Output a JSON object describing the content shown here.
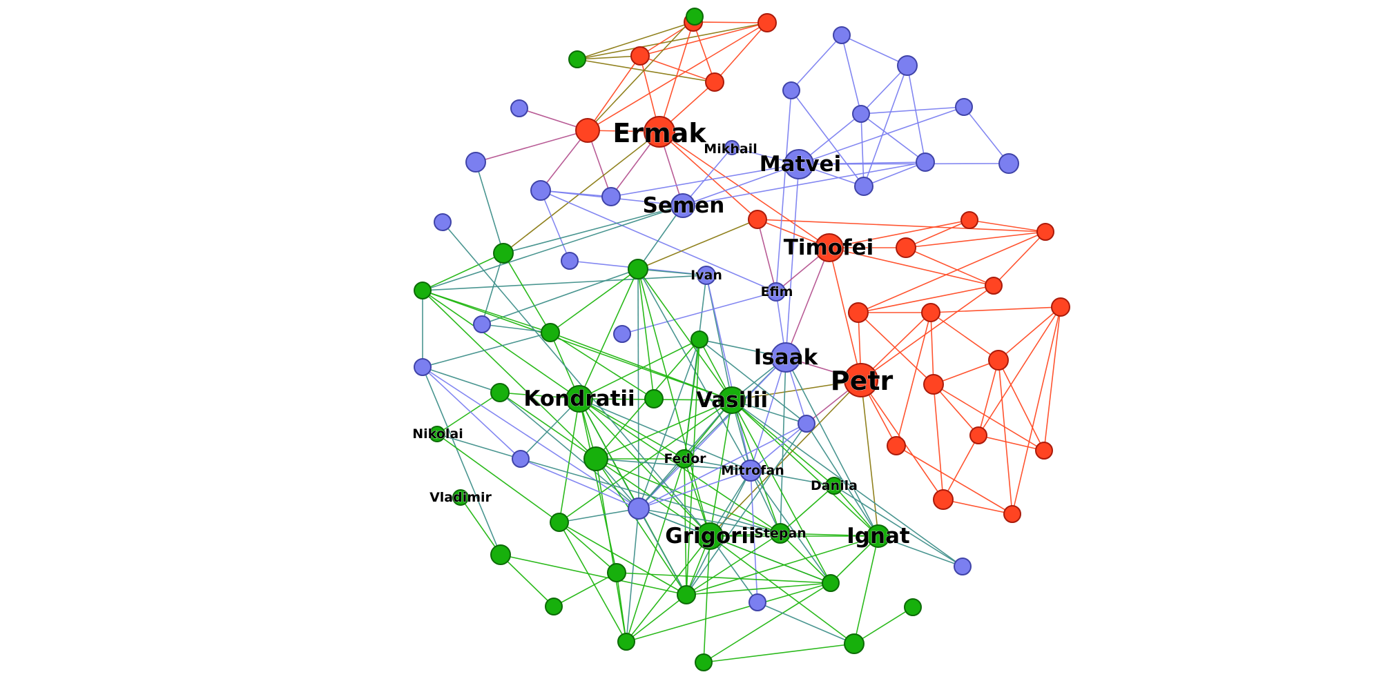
{
  "colors": {
    "red_group": "#ff4422",
    "red_stroke": "#aa1a0a",
    "blue_group": "#7b7ff0",
    "blue_stroke": "#3f43a8",
    "green_group": "#17b00c",
    "green_stroke": "#0b6a06",
    "edge_red": "#ff4a24",
    "edge_blue": "#7b7ff0",
    "edge_green": "#1fb50f",
    "edge_red_blue": "#b4528f",
    "edge_red_green": "#8a7a12",
    "edge_blue_green": "#3f8f8a"
  },
  "labels": {
    "ermak": "Ermak",
    "mikhail": "Mikhail",
    "matvei": "Matvei",
    "semen": "Semen",
    "timofei": "Timofei",
    "ivan": "Ivan",
    "efim": "Efim",
    "isaak": "Isaak",
    "petr": "Petr",
    "kondratii": "Kondratii",
    "vasilii": "Vasilii",
    "nikolai": "Nikolai",
    "fedor": "Fedor",
    "mitrofan": "Mitrofan",
    "danila": "Danila",
    "vladimir": "Vladimir",
    "grigorii": "Grigorii",
    "stepan": "Stepan",
    "ignat": "Ignat"
  },
  "chart_data": {
    "type": "network",
    "groups": [
      "red",
      "blue",
      "green"
    ],
    "nodes": [
      {
        "id": "ermak",
        "name": "Ermak",
        "group": "red"
      },
      {
        "id": "mikhail",
        "name": "Mikhail",
        "group": "blue"
      },
      {
        "id": "matvei",
        "name": "Matvei",
        "group": "blue"
      },
      {
        "id": "semen",
        "name": "Semen",
        "group": "blue"
      },
      {
        "id": "timofei",
        "name": "Timofei",
        "group": "red"
      },
      {
        "id": "ivan",
        "name": "Ivan",
        "group": "blue"
      },
      {
        "id": "efim",
        "name": "Efim",
        "group": "blue"
      },
      {
        "id": "isaak",
        "name": "Isaak",
        "group": "blue"
      },
      {
        "id": "petr",
        "name": "Petr",
        "group": "red"
      },
      {
        "id": "kondratii",
        "name": "Kondratii",
        "group": "green"
      },
      {
        "id": "vasilii",
        "name": "Vasilii",
        "group": "green"
      },
      {
        "id": "nikolai",
        "name": "Nikolai",
        "group": "green"
      },
      {
        "id": "fedor",
        "name": "Fedor",
        "group": "green"
      },
      {
        "id": "mitrofan",
        "name": "Mitrofan",
        "group": "blue"
      },
      {
        "id": "danila",
        "name": "Danila",
        "group": "green"
      },
      {
        "id": "vladimir",
        "name": "Vladimir",
        "group": "green"
      },
      {
        "id": "grigorii",
        "name": "Grigorii",
        "group": "green"
      },
      {
        "id": "stepan",
        "name": "Stepan",
        "group": "green"
      },
      {
        "id": "ignat",
        "name": "Ignat",
        "group": "green"
      },
      {
        "id": "r1",
        "group": "red"
      },
      {
        "id": "r2",
        "group": "red"
      },
      {
        "id": "r3",
        "group": "red"
      },
      {
        "id": "r4",
        "group": "red"
      },
      {
        "id": "r5",
        "group": "red"
      },
      {
        "id": "r6",
        "group": "red"
      },
      {
        "id": "r7",
        "group": "red"
      },
      {
        "id": "r8",
        "group": "red"
      },
      {
        "id": "r9",
        "group": "red"
      },
      {
        "id": "r10",
        "group": "red"
      },
      {
        "id": "r11",
        "group": "red"
      },
      {
        "id": "r12",
        "group": "red"
      },
      {
        "id": "r13",
        "group": "red"
      },
      {
        "id": "r14",
        "group": "red"
      },
      {
        "id": "r15",
        "group": "red"
      },
      {
        "id": "r16",
        "group": "red"
      },
      {
        "id": "r17",
        "group": "red"
      },
      {
        "id": "r18",
        "group": "red"
      },
      {
        "id": "r19",
        "group": "red"
      },
      {
        "id": "r20",
        "group": "red"
      },
      {
        "id": "b1",
        "group": "blue"
      },
      {
        "id": "b2",
        "group": "blue"
      },
      {
        "id": "b3",
        "group": "blue"
      },
      {
        "id": "b4",
        "group": "blue"
      },
      {
        "id": "b5",
        "group": "blue"
      },
      {
        "id": "b6",
        "group": "blue"
      },
      {
        "id": "b7",
        "group": "blue"
      },
      {
        "id": "b8",
        "group": "blue"
      },
      {
        "id": "b9",
        "group": "blue"
      },
      {
        "id": "b10",
        "group": "blue"
      },
      {
        "id": "b11",
        "group": "blue"
      },
      {
        "id": "b12",
        "group": "blue"
      },
      {
        "id": "b13",
        "group": "blue"
      },
      {
        "id": "b14",
        "group": "blue"
      },
      {
        "id": "b15",
        "group": "blue"
      },
      {
        "id": "b16",
        "group": "blue"
      },
      {
        "id": "b17",
        "group": "blue"
      },
      {
        "id": "b18",
        "group": "blue"
      },
      {
        "id": "b19",
        "group": "blue"
      },
      {
        "id": "b20",
        "group": "blue"
      },
      {
        "id": "b21",
        "group": "blue"
      },
      {
        "id": "b22",
        "group": "blue"
      },
      {
        "id": "g1",
        "group": "green"
      },
      {
        "id": "g2",
        "group": "green"
      },
      {
        "id": "g3",
        "group": "green"
      },
      {
        "id": "g4",
        "group": "green"
      },
      {
        "id": "g5",
        "group": "green"
      },
      {
        "id": "g6",
        "group": "green"
      },
      {
        "id": "g7",
        "group": "green"
      },
      {
        "id": "g8",
        "group": "green"
      },
      {
        "id": "g9",
        "group": "green"
      },
      {
        "id": "g10",
        "group": "green"
      },
      {
        "id": "g11",
        "group": "green"
      },
      {
        "id": "g12",
        "group": "green"
      },
      {
        "id": "g13",
        "group": "green"
      },
      {
        "id": "g14",
        "group": "green"
      },
      {
        "id": "g15",
        "group": "green"
      },
      {
        "id": "g16",
        "group": "green"
      },
      {
        "id": "g17",
        "group": "green"
      },
      {
        "id": "g18",
        "group": "green"
      },
      {
        "id": "g19",
        "group": "green"
      },
      {
        "id": "g20",
        "group": "green"
      }
    ],
    "edges": [
      [
        "g1",
        "r1"
      ],
      [
        "g1",
        "r2"
      ],
      [
        "g1",
        "r3"
      ],
      [
        "g1",
        "r4"
      ],
      [
        "r2",
        "r3"
      ],
      [
        "r2",
        "r4"
      ],
      [
        "r3",
        "r4"
      ],
      [
        "r1",
        "r2"
      ],
      [
        "r1",
        "r3"
      ],
      [
        "r1",
        "r4"
      ],
      [
        "r1",
        "ermak"
      ],
      [
        "r2",
        "ermak"
      ],
      [
        "r4",
        "ermak"
      ],
      [
        "ermak",
        "r5"
      ],
      [
        "r5",
        "b1"
      ],
      [
        "r5",
        "b2"
      ],
      [
        "r5",
        "b3"
      ],
      [
        "r5",
        "b4"
      ],
      [
        "r5",
        "g2"
      ],
      [
        "r5",
        "r2"
      ],
      [
        "r5",
        "r3"
      ],
      [
        "ermak",
        "b4"
      ],
      [
        "ermak",
        "semen"
      ],
      [
        "ermak",
        "timofei"
      ],
      [
        "ermak",
        "r6"
      ],
      [
        "ermak",
        "g3"
      ],
      [
        "b5",
        "b6"
      ],
      [
        "b5",
        "b7"
      ],
      [
        "b5",
        "b8"
      ],
      [
        "b6",
        "b8"
      ],
      [
        "b6",
        "b11"
      ],
      [
        "b6",
        "b12"
      ],
      [
        "b7",
        "b12"
      ],
      [
        "b9",
        "b10"
      ],
      [
        "b9",
        "b8"
      ],
      [
        "b9",
        "matvei"
      ],
      [
        "b10",
        "matvei"
      ],
      [
        "b8",
        "matvei"
      ],
      [
        "b8",
        "b12"
      ],
      [
        "b8",
        "b11"
      ],
      [
        "matvei",
        "b11"
      ],
      [
        "matvei",
        "b12"
      ],
      [
        "matvei",
        "mikhail"
      ],
      [
        "matvei",
        "semen"
      ],
      [
        "matvei",
        "b4"
      ],
      [
        "matvei",
        "isaak"
      ],
      [
        "b11",
        "b12"
      ],
      [
        "b11",
        "semen"
      ],
      [
        "mikhail",
        "semen"
      ],
      [
        "b3",
        "b4"
      ],
      [
        "b3",
        "b13"
      ],
      [
        "b3",
        "efim"
      ],
      [
        "b3",
        "semen"
      ],
      [
        "semen",
        "g3"
      ],
      [
        "semen",
        "g4"
      ],
      [
        "semen",
        "g5"
      ],
      [
        "timofei",
        "r6"
      ],
      [
        "timofei",
        "r7"
      ],
      [
        "timofei",
        "r8"
      ],
      [
        "timofei",
        "r9"
      ],
      [
        "timofei",
        "petr"
      ],
      [
        "timofei",
        "efim"
      ],
      [
        "timofei",
        "isaak"
      ],
      [
        "r7",
        "r8"
      ],
      [
        "r7",
        "r10"
      ],
      [
        "r7",
        "r9"
      ],
      [
        "r8",
        "r10"
      ],
      [
        "r9",
        "r10"
      ],
      [
        "r9",
        "r11"
      ],
      [
        "r9",
        "petr"
      ],
      [
        "r11",
        "r10"
      ],
      [
        "r11",
        "petr"
      ],
      [
        "r11",
        "r12"
      ],
      [
        "r11",
        "r13"
      ],
      [
        "r10",
        "r6"
      ],
      [
        "r12",
        "petr"
      ],
      [
        "r12",
        "r13"
      ],
      [
        "r12",
        "r14"
      ],
      [
        "r12",
        "r15"
      ],
      [
        "r12",
        "r16"
      ],
      [
        "r13",
        "r15"
      ],
      [
        "r13",
        "r17"
      ],
      [
        "r13",
        "r18"
      ],
      [
        "r13",
        "r19"
      ],
      [
        "r15",
        "r16"
      ],
      [
        "r15",
        "r17"
      ],
      [
        "r15",
        "r18"
      ],
      [
        "r15",
        "r20"
      ],
      [
        "r16",
        "r17"
      ],
      [
        "r16",
        "r18"
      ],
      [
        "r16",
        "r20"
      ],
      [
        "r17",
        "r18"
      ],
      [
        "r18",
        "r19"
      ],
      [
        "r14",
        "r20"
      ],
      [
        "r19",
        "r20"
      ],
      [
        "petr",
        "isaak"
      ],
      [
        "petr",
        "vasilii"
      ],
      [
        "petr",
        "r19"
      ],
      [
        "petr",
        "grigorii"
      ],
      [
        "petr",
        "ignat"
      ],
      [
        "petr",
        "b14"
      ],
      [
        "petr",
        "r14"
      ],
      [
        "r6",
        "g4"
      ],
      [
        "r6",
        "efim"
      ],
      [
        "ivan",
        "b13"
      ],
      [
        "ivan",
        "g4"
      ],
      [
        "ivan",
        "vasilii"
      ],
      [
        "ivan",
        "mitrofan"
      ],
      [
        "ivan",
        "g5"
      ],
      [
        "ivan",
        "fedor"
      ],
      [
        "efim",
        "b15"
      ],
      [
        "efim",
        "isaak"
      ],
      [
        "efim",
        "b7"
      ],
      [
        "isaak",
        "vasilii"
      ],
      [
        "isaak",
        "b14"
      ],
      [
        "isaak",
        "fedor"
      ],
      [
        "isaak",
        "mitrofan"
      ],
      [
        "isaak",
        "stepan"
      ],
      [
        "isaak",
        "ignat"
      ],
      [
        "isaak",
        "b16"
      ],
      [
        "isaak",
        "g6"
      ],
      [
        "g3",
        "g5"
      ],
      [
        "g3",
        "g7"
      ],
      [
        "g3",
        "b17"
      ],
      [
        "g3",
        "b2"
      ],
      [
        "g4",
        "g7"
      ],
      [
        "g4",
        "g8"
      ],
      [
        "g4",
        "kondratii"
      ],
      [
        "g4",
        "vasilii"
      ],
      [
        "g4",
        "b17"
      ],
      [
        "g4",
        "mitrofan"
      ],
      [
        "g4",
        "grigorii"
      ],
      [
        "g4",
        "b16"
      ],
      [
        "g5",
        "g7"
      ],
      [
        "g5",
        "kondratii"
      ],
      [
        "g5",
        "b18"
      ],
      [
        "g5",
        "vasilii"
      ],
      [
        "g5",
        "g9"
      ],
      [
        "g7",
        "b18"
      ],
      [
        "g7",
        "vasilii"
      ],
      [
        "g7",
        "kondratii"
      ],
      [
        "g7",
        "b17"
      ],
      [
        "g7",
        "g8"
      ],
      [
        "g10",
        "b18"
      ],
      [
        "g10",
        "kondratii"
      ],
      [
        "g10",
        "nikolai"
      ],
      [
        "g10",
        "g9"
      ],
      [
        "g10",
        "b16"
      ],
      [
        "b18",
        "b19"
      ],
      [
        "b18",
        "b16"
      ],
      [
        "b18",
        "g11"
      ],
      [
        "kondratii",
        "g6"
      ],
      [
        "kondratii",
        "vasilii"
      ],
      [
        "kondratii",
        "g9"
      ],
      [
        "kondratii",
        "b19"
      ],
      [
        "kondratii",
        "fedor"
      ],
      [
        "kondratii",
        "mitrofan"
      ],
      [
        "kondratii",
        "b16"
      ],
      [
        "kondratii",
        "grigorii"
      ],
      [
        "kondratii",
        "g12"
      ],
      [
        "kondratii",
        "g13"
      ],
      [
        "kondratii",
        "g14"
      ],
      [
        "kondratii",
        "stepan"
      ],
      [
        "g6",
        "vasilii"
      ],
      [
        "g6",
        "b16"
      ],
      [
        "g6",
        "g9"
      ],
      [
        "g6",
        "b14"
      ],
      [
        "g6",
        "g12"
      ],
      [
        "g6",
        "fedor"
      ],
      [
        "vasilii",
        "b14"
      ],
      [
        "vasilii",
        "fedor"
      ],
      [
        "vasilii",
        "mitrofan"
      ],
      [
        "vasilii",
        "grigorii"
      ],
      [
        "vasilii",
        "stepan"
      ],
      [
        "vasilii",
        "g9"
      ],
      [
        "vasilii",
        "b16"
      ],
      [
        "vasilii",
        "g13"
      ],
      [
        "vasilii",
        "g15"
      ],
      [
        "vasilii",
        "ignat"
      ],
      [
        "vasilii",
        "b20"
      ],
      [
        "vasilii",
        "danila"
      ],
      [
        "nikolai",
        "g13"
      ],
      [
        "nikolai",
        "b19"
      ],
      [
        "g9",
        "fedor"
      ],
      [
        "g9",
        "mitrofan"
      ],
      [
        "g9",
        "g12"
      ],
      [
        "g9",
        "b16"
      ],
      [
        "g9",
        "grigorii"
      ],
      [
        "g9",
        "stepan"
      ],
      [
        "g9",
        "g16"
      ],
      [
        "b19",
        "b16"
      ],
      [
        "b19",
        "stepan"
      ],
      [
        "fedor",
        "mitrofan"
      ],
      [
        "fedor",
        "b16"
      ],
      [
        "fedor",
        "grigorii"
      ],
      [
        "fedor",
        "g12"
      ],
      [
        "fedor",
        "g16"
      ],
      [
        "mitrofan",
        "b14"
      ],
      [
        "mitrofan",
        "danila"
      ],
      [
        "mitrofan",
        "g12"
      ],
      [
        "mitrofan",
        "grigorii"
      ],
      [
        "mitrofan",
        "stepan"
      ],
      [
        "mitrofan",
        "b16"
      ],
      [
        "mitrofan",
        "g15"
      ],
      [
        "mitrofan",
        "b21"
      ],
      [
        "b14",
        "ignat"
      ],
      [
        "b14",
        "g12"
      ],
      [
        "b14",
        "b16"
      ],
      [
        "danila",
        "ignat"
      ],
      [
        "danila",
        "stepan"
      ],
      [
        "danila",
        "b20"
      ],
      [
        "vladimir",
        "g11"
      ],
      [
        "g11",
        "g17"
      ],
      [
        "g11",
        "g12"
      ],
      [
        "b16",
        "grigorii"
      ],
      [
        "b16",
        "g12"
      ],
      [
        "b16",
        "g13"
      ],
      [
        "b16",
        "g16"
      ],
      [
        "b16",
        "g15"
      ],
      [
        "b16",
        "stepan"
      ],
      [
        "g13",
        "g12"
      ],
      [
        "g13",
        "g16"
      ],
      [
        "g13",
        "g14"
      ],
      [
        "grigorii",
        "g12"
      ],
      [
        "grigorii",
        "g15"
      ],
      [
        "grigorii",
        "g16"
      ],
      [
        "grigorii",
        "stepan"
      ],
      [
        "grigorii",
        "ignat"
      ],
      [
        "grigorii",
        "b21"
      ],
      [
        "grigorii",
        "g18"
      ],
      [
        "grigorii",
        "g19"
      ],
      [
        "grigorii",
        "b22"
      ],
      [
        "stepan",
        "ignat"
      ],
      [
        "stepan",
        "g12"
      ],
      [
        "stepan",
        "g15"
      ],
      [
        "ignat",
        "g12"
      ],
      [
        "ignat",
        "g18"
      ],
      [
        "ignat",
        "b20"
      ],
      [
        "ignat",
        "g15"
      ],
      [
        "g12",
        "g16"
      ],
      [
        "g12",
        "g15"
      ],
      [
        "g15",
        "g16"
      ],
      [
        "g15",
        "g19"
      ],
      [
        "g14",
        "g16"
      ],
      [
        "g14",
        "g17"
      ],
      [
        "g14",
        "g15"
      ],
      [
        "g18",
        "g19"
      ],
      [
        "g18",
        "g20"
      ],
      [
        "g18",
        "b21"
      ]
    ]
  }
}
